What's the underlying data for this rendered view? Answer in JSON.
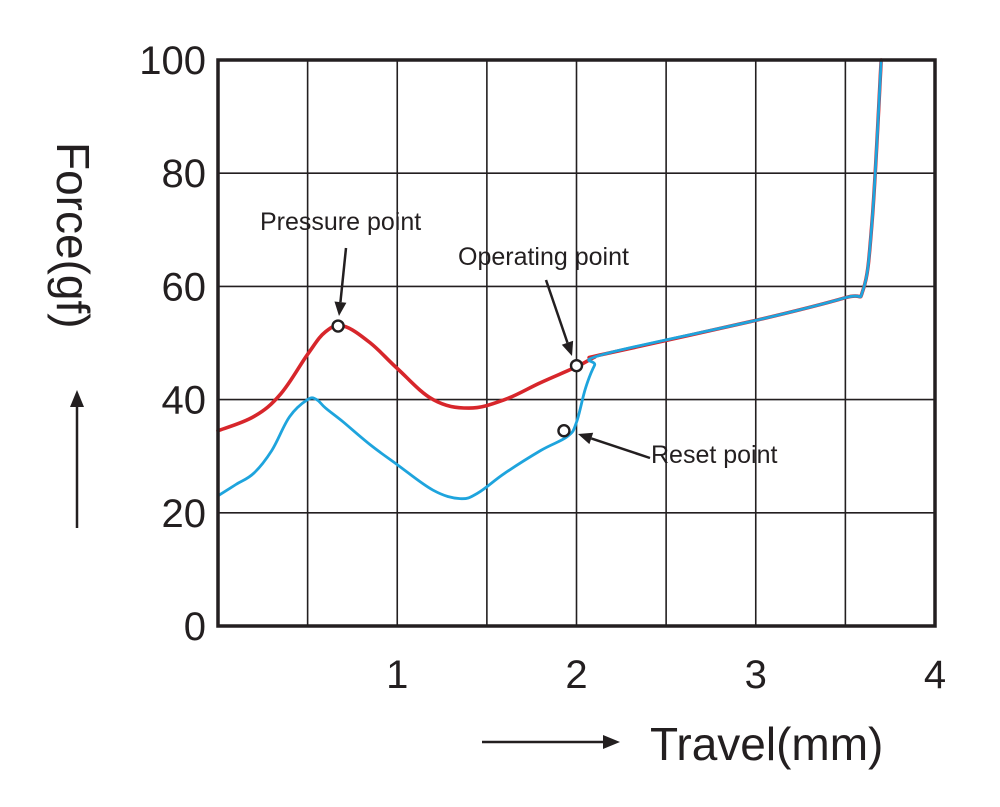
{
  "chart_data": {
    "type": "line",
    "xlabel": "Travel(mm)",
    "ylabel": "Force(gf)",
    "xlim": [
      0,
      4
    ],
    "ylim": [
      0,
      100
    ],
    "x_ticks": [
      1,
      2,
      3,
      4
    ],
    "y_ticks": [
      0,
      20,
      40,
      60,
      80,
      100
    ],
    "x_grid_step": 0.5,
    "y_grid_step": 20,
    "grid": true,
    "series": [
      {
        "color": "#d7262b",
        "x": [
          0,
          0.2,
          0.35,
          0.5,
          0.6,
          0.7,
          0.85,
          1.0,
          1.2,
          1.4,
          1.6,
          1.8,
          2.0,
          2.1,
          2.15,
          3.0,
          3.5,
          3.6,
          3.65,
          3.7
        ],
        "y": [
          34.5,
          37,
          41,
          48,
          52,
          53,
          50,
          45.5,
          40,
          38.5,
          40,
          43,
          45.8,
          47.5,
          48,
          54,
          58,
          59.5,
          72,
          100
        ]
      },
      {
        "color": "#1ea4dd",
        "x": [
          0,
          0.1,
          0.2,
          0.3,
          0.4,
          0.5,
          0.55,
          0.6,
          0.7,
          0.85,
          1.0,
          1.2,
          1.35,
          1.45,
          1.6,
          1.8,
          1.95,
          2.0,
          2.05,
          2.1,
          2.15,
          3.0,
          3.5,
          3.6,
          3.65,
          3.7
        ],
        "y": [
          23,
          25,
          27,
          31,
          37,
          40,
          40,
          38.5,
          36,
          32,
          28.5,
          24,
          22.5,
          23.5,
          27,
          31,
          33.5,
          36,
          42,
          46,
          48,
          54,
          58,
          59.5,
          72,
          100
        ]
      }
    ],
    "annotations": [
      {
        "label": "Pressure point",
        "x": 0.67,
        "y": 53
      },
      {
        "label": "Operating point",
        "x": 2.0,
        "y": 46
      },
      {
        "label": "Reset point",
        "x": 1.93,
        "y": 34.5
      }
    ]
  }
}
